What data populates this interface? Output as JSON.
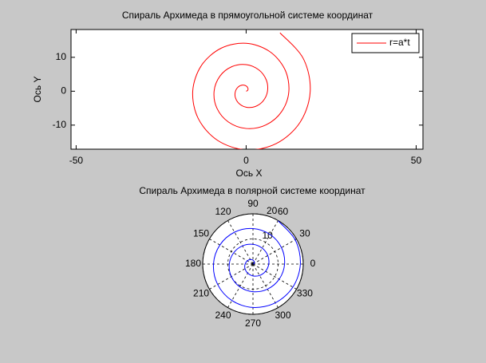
{
  "chart_data": [
    {
      "type": "line",
      "title": "Спираль Архимеда в прямоугольной системе координат",
      "xlabel": "Ось X",
      "ylabel": "Ось Y",
      "xlim": [
        -51.5,
        52
      ],
      "ylim": [
        -17.1,
        18.2
      ],
      "xticks": [
        -50,
        0,
        50
      ],
      "yticks": [
        -10,
        0,
        10
      ],
      "legend": "top-right",
      "series": [
        {
          "name": "r=a*t",
          "color": "#ff0000",
          "x": [
            0,
            0.453,
            0.524,
            0,
            -1.047,
            -2.267,
            -3.142,
            -3.174,
            -2.094,
            0,
            2.618,
            4.988,
            6.283,
            5.895,
            3.665,
            0,
            -4.189,
            -7.709,
            -9.425,
            -8.615,
            -5.236,
            0,
            5.76,
            10.429,
            12.566,
            11.336,
            6.807,
            0,
            -7.33,
            -13.15,
            -15.708,
            -14.057,
            -8.378,
            0,
            8.901,
            15.871,
            18.85,
            16.778,
            9.948
          ],
          "values": [
            0,
            0.262,
            0.907,
            1.571,
            1.814,
            1.309,
            0,
            -1.833,
            -3.628,
            -4.712,
            -4.534,
            -2.88,
            0,
            3.403,
            6.348,
            7.854,
            7.255,
            4.451,
            0,
            -4.974,
            -9.069,
            -10.996,
            -9.976,
            -6.021,
            0,
            6.545,
            11.79,
            14.137,
            12.697,
            7.592,
            0,
            -8.116,
            -14.51,
            -17.279,
            -15.417,
            -9.163,
            0,
            9.687,
            17.231
          ]
        }
      ]
    },
    {
      "type": "polar",
      "title": "Спираль Архимеда в полярной системе координат",
      "rlim": [
        0,
        20
      ],
      "rticks": [
        10,
        20
      ],
      "thetaticks": [
        0,
        30,
        60,
        90,
        120,
        150,
        180,
        210,
        240,
        270,
        300,
        330
      ],
      "grid": true,
      "series": [
        {
          "color": "#0000ff",
          "theta": [
            0,
            30,
            60,
            90,
            120,
            150,
            180,
            210,
            240,
            270,
            300,
            330,
            360,
            390,
            420,
            450,
            480,
            510,
            540,
            570,
            600,
            630,
            660,
            690,
            720,
            750,
            780,
            810,
            840,
            870,
            900,
            930,
            960,
            990,
            1020,
            1050,
            1080,
            1110,
            1140
          ],
          "values": [
            0,
            0.5236,
            1.0472,
            1.5708,
            2.0944,
            2.618,
            3.1416,
            3.6652,
            4.1888,
            4.7124,
            5.236,
            5.7596,
            6.2832,
            6.8068,
            7.3304,
            7.854,
            8.3776,
            8.9012,
            9.4248,
            9.9484,
            10.472,
            10.9956,
            11.5192,
            12.0428,
            12.5664,
            13.09,
            13.6136,
            14.1372,
            14.6608,
            15.1844,
            15.708,
            16.2316,
            16.7552,
            17.2788,
            17.8024,
            18.326,
            18.8496,
            19.3732,
            19.897
          ]
        }
      ]
    }
  ]
}
